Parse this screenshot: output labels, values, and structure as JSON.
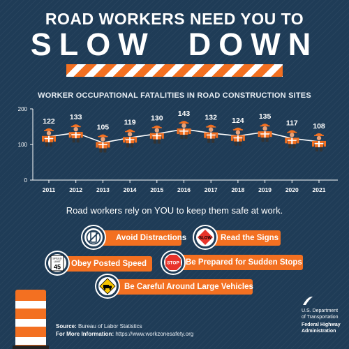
{
  "header": {
    "line1": "ROAD WORKERS NEED YOU TO",
    "line2": "SLOW  DOWN"
  },
  "chart_title": "WORKER OCCUPATIONAL FATALITIES IN ROAD CONSTRUCTION SITES",
  "chart_data": {
    "type": "line",
    "title": "WORKER OCCUPATIONAL FATALITIES IN ROAD CONSTRUCTION SITES",
    "categories": [
      "2011",
      "2012",
      "2013",
      "2014",
      "2015",
      "2016",
      "2017",
      "2018",
      "2019",
      "2020",
      "2021"
    ],
    "values": [
      122,
      133,
      105,
      119,
      130,
      143,
      132,
      124,
      135,
      117,
      108
    ],
    "ylim": [
      0,
      200
    ],
    "yticks": [
      0,
      100,
      200
    ],
    "grid": false,
    "xlabel": "",
    "ylabel": ""
  },
  "tagline": "Road workers rely on YOU to keep them safe at work.",
  "tips": {
    "avoid": "Avoid Distractions",
    "signs": "Read the Signs",
    "speed": "Obey Posted Speed",
    "stops": "Be Prepared for Sudden Stops",
    "vehicles": "Be Careful Around Large Vehicles"
  },
  "icons": {
    "speed_top": "SPEED",
    "speed_mid": "LIMIT",
    "speed_num": "45",
    "stop": "STOP",
    "slow": "SLOW"
  },
  "footer": {
    "source_label": "Source:",
    "source": " Bureau of Labor Statistics",
    "info_label": "For More Information:",
    "info": " https://www.workzonesafety.org"
  },
  "agency": {
    "line1": "U.S. Department",
    "line2": "of Transportation",
    "line3": "Federal Highway",
    "line4": "Administration"
  },
  "colors": {
    "background": "#1f3c57",
    "accent": "#f37021"
  }
}
